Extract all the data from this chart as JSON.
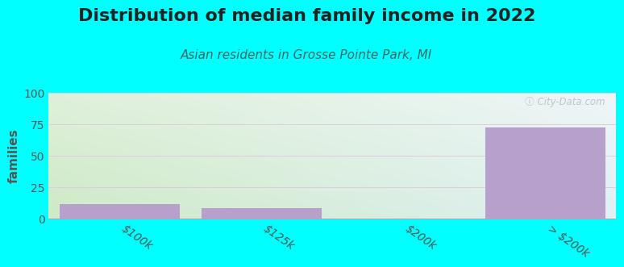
{
  "title": "Distribution of median family income in 2022",
  "subtitle": "Asian residents in Grosse Pointe Park, MI",
  "categories": [
    "$100k",
    "$125k",
    "$200k",
    "> $200k"
  ],
  "values": [
    11,
    8,
    0,
    72
  ],
  "bar_color": "#b8a0cc",
  "bg_gradient_topleft": "#e8f5e0",
  "bg_gradient_topright": "#f0faff",
  "bg_gradient_bottomleft": "#d0eec8",
  "bg_gradient_bottomright": "#e8f5f8",
  "plot_bg": "#00ffff",
  "ylabel": "families",
  "ylim": [
    0,
    100
  ],
  "yticks": [
    0,
    25,
    50,
    75,
    100
  ],
  "grid_color": "#ddccdd",
  "watermark": "ⓘ City-Data.com",
  "title_fontsize": 16,
  "subtitle_fontsize": 11,
  "tick_label_fontsize": 10,
  "ylabel_fontsize": 11
}
